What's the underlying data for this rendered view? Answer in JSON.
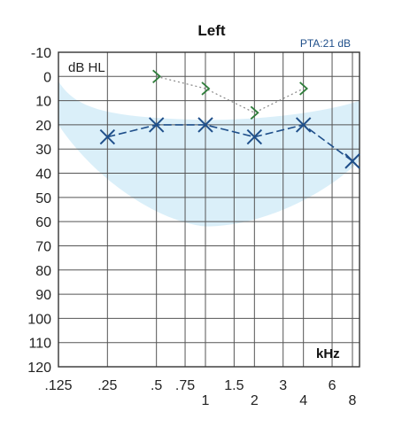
{
  "chart_data": {
    "type": "line",
    "title": "Left",
    "annotation": "PTA:21 dB",
    "ylabel": "dB HL",
    "xlabel": "kHz",
    "ylim": [
      -10,
      120
    ],
    "y_reversed": true,
    "y_ticks": [
      "-10",
      "0",
      "10",
      "20",
      "30",
      "40",
      "50",
      "60",
      "70",
      "80",
      "90",
      "100",
      "110",
      "120"
    ],
    "x_ticks_top_row": [
      {
        "label": ".125",
        "freq": 0.125
      },
      {
        "label": ".25",
        "freq": 0.25
      },
      {
        "label": ".5",
        "freq": 0.5
      },
      {
        "label": ".75",
        "freq": 0.75
      },
      {
        "label": "1.5",
        "freq": 1.5
      },
      {
        "label": "3",
        "freq": 3
      },
      {
        "label": "6",
        "freq": 6
      }
    ],
    "x_ticks_bottom_row": [
      {
        "label": "1",
        "freq": 1
      },
      {
        "label": "2",
        "freq": 2
      },
      {
        "label": "4",
        "freq": 4
      },
      {
        "label": "8",
        "freq": 8
      }
    ],
    "series": [
      {
        "marker": "x",
        "line": "dashed",
        "points": [
          {
            "freq": 0.25,
            "db": 25
          },
          {
            "freq": 0.5,
            "db": 20
          },
          {
            "freq": 1,
            "db": 20
          },
          {
            "freq": 2,
            "db": 25
          },
          {
            "freq": 4,
            "db": 20
          },
          {
            "freq": 8,
            "db": 35
          }
        ]
      },
      {
        "marker": "chevron",
        "line": "dotted",
        "points": [
          {
            "freq": 0.5,
            "db": 0
          },
          {
            "freq": 1,
            "db": 5
          },
          {
            "freq": 2,
            "db": 15
          },
          {
            "freq": 4,
            "db": 5
          }
        ]
      }
    ],
    "normal_range_band": true,
    "colors": {
      "grid": "#555555",
      "air_series": "#1f4f8a",
      "bone_series": "#2e7d3a",
      "band": "#cdeaf7",
      "annotation": "#1f4f8a"
    }
  }
}
